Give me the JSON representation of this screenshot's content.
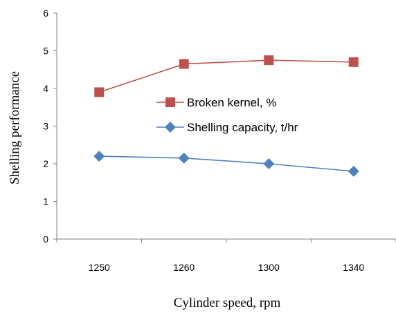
{
  "chart_data": {
    "type": "line",
    "title": "",
    "xlabel": "Cylinder speed, rpm",
    "ylabel": "Shelling performance",
    "categories": [
      "1250",
      "1260",
      "1300",
      "1340"
    ],
    "ylim": [
      0,
      6
    ],
    "yticks": [
      "0",
      "1",
      "2",
      "3",
      "4",
      "5",
      "6"
    ],
    "grid": false,
    "legend_position": "center-right",
    "series": [
      {
        "name": "Broken kernel, %",
        "values": [
          3.9,
          4.65,
          4.75,
          4.7
        ],
        "color": "#c0504d",
        "marker": "square"
      },
      {
        "name": "Shelling capacity, t/hr",
        "values": [
          2.2,
          2.15,
          2.0,
          1.8
        ],
        "color": "#4f81bd",
        "marker": "diamond"
      }
    ]
  }
}
